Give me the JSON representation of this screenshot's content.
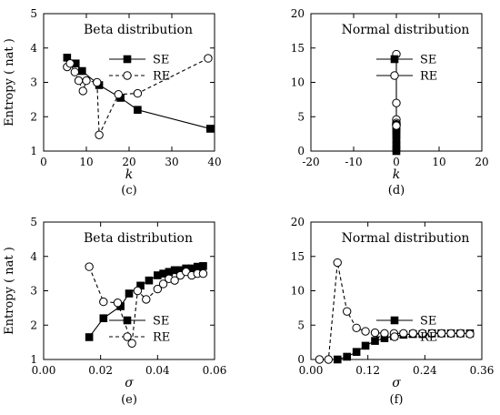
{
  "chart_data": [
    {
      "panel": "(c)",
      "type": "line",
      "title": "Beta distribution",
      "xlabel": "k",
      "ylabel": "Entropy ( nat )",
      "xlim": [
        0,
        40
      ],
      "ylim": [
        1,
        5
      ],
      "xticks": [
        0,
        10,
        20,
        30,
        40
      ],
      "yticks": [
        1,
        2,
        3,
        4,
        5
      ],
      "legend_position": "top-right",
      "series": [
        {
          "name": "SE",
          "marker": "filled-square",
          "line": "solid",
          "x": [
            5.5,
            7.5,
            9,
            13,
            18,
            22,
            39
          ],
          "y": [
            3.72,
            3.55,
            3.33,
            2.92,
            2.55,
            2.2,
            1.65
          ]
        },
        {
          "name": "RE",
          "marker": "open-circle",
          "line": "dashed",
          "x": [
            5.5,
            6.2,
            7.3,
            8.2,
            9.2,
            10,
            12.5,
            13,
            17.5,
            22,
            38.5
          ],
          "y": [
            3.45,
            3.55,
            3.3,
            3.05,
            2.75,
            3.05,
            3.0,
            1.47,
            2.65,
            2.68,
            3.7
          ]
        }
      ]
    },
    {
      "panel": "(d)",
      "type": "line",
      "title": "Normal distribution",
      "xlabel": "k",
      "ylabel": "",
      "xlim": [
        -20,
        20
      ],
      "ylim": [
        0,
        20
      ],
      "xticks": [
        -20,
        -10,
        0,
        10,
        20
      ],
      "yticks": [
        0,
        5,
        10,
        15,
        20
      ],
      "legend_position": "top-right",
      "series": [
        {
          "name": "SE",
          "marker": "filled-square",
          "line": "solid",
          "x": [
            0,
            0,
            0,
            0,
            0,
            0,
            0,
            0,
            0
          ],
          "y": [
            0,
            0.4,
            0.9,
            1.6,
            2.2,
            2.7,
            3.1,
            3.4,
            3.7
          ]
        },
        {
          "name": "RE",
          "marker": "open-circle",
          "line": "solid",
          "x": [
            0,
            0,
            0,
            0,
            0,
            0,
            0,
            0,
            0
          ],
          "y": [
            14.1,
            7.0,
            4.6,
            4.1,
            3.9,
            3.8,
            3.8,
            3.8,
            3.7
          ]
        }
      ]
    },
    {
      "panel": "(e)",
      "type": "line",
      "title": "Beta distribution",
      "xlabel": "σ",
      "ylabel": "Entropy ( nat )",
      "xlim": [
        0,
        0.06
      ],
      "ylim": [
        1,
        5
      ],
      "xticks": [
        0,
        0.02,
        0.04,
        0.06
      ],
      "xtick_labels": [
        "0.00",
        "0.02",
        "0.04",
        "0.06"
      ],
      "yticks": [
        1,
        2,
        3,
        4,
        5
      ],
      "legend_position": "center-right",
      "series": [
        {
          "name": "SE",
          "marker": "filled-square",
          "line": "solid",
          "x": [
            0.016,
            0.021,
            0.027,
            0.03,
            0.034,
            0.037,
            0.04,
            0.042,
            0.044,
            0.046,
            0.048,
            0.05,
            0.052,
            0.054,
            0.056
          ],
          "y": [
            1.65,
            2.2,
            2.55,
            2.92,
            3.15,
            3.3,
            3.45,
            3.5,
            3.55,
            3.6,
            3.6,
            3.65,
            3.65,
            3.7,
            3.72
          ]
        },
        {
          "name": "RE",
          "marker": "open-circle",
          "line": "dashed",
          "x": [
            0.016,
            0.021,
            0.026,
            0.031,
            0.033,
            0.036,
            0.04,
            0.042,
            0.044,
            0.046,
            0.048,
            0.05,
            0.052,
            0.054,
            0.056
          ],
          "y": [
            3.7,
            2.68,
            2.65,
            1.47,
            3.0,
            2.75,
            3.05,
            3.2,
            3.35,
            3.3,
            3.45,
            3.55,
            3.45,
            3.5,
            3.5
          ]
        }
      ]
    },
    {
      "panel": "(f)",
      "type": "line",
      "title": "Normal distribution",
      "xlabel": "σ",
      "ylabel": "",
      "xlim": [
        0,
        0.36
      ],
      "ylim": [
        0,
        20
      ],
      "xticks": [
        0,
        0.12,
        0.24,
        0.36
      ],
      "xtick_labels": [
        "0.00",
        "0.12",
        "0.24",
        "0.36"
      ],
      "yticks": [
        0,
        5,
        10,
        15,
        20
      ],
      "legend_position": "center-right",
      "series": [
        {
          "name": "SE",
          "marker": "filled-square",
          "line": "solid",
          "x": [
            0.056,
            0.076,
            0.096,
            0.115,
            0.135,
            0.155,
            0.175,
            0.195,
            0.215,
            0.235,
            0.255,
            0.275,
            0.295,
            0.315,
            0.335
          ],
          "y": [
            0.0,
            0.4,
            1.1,
            2.0,
            2.7,
            3.1,
            3.4,
            3.6,
            3.7,
            3.7,
            3.8,
            3.8,
            3.8,
            3.8,
            3.8
          ]
        },
        {
          "name": "RE",
          "marker": "open-circle",
          "line": "dashed",
          "x": [
            0.018,
            0.037,
            0.056,
            0.076,
            0.096,
            0.115,
            0.135,
            0.155,
            0.175,
            0.195,
            0.215,
            0.235,
            0.255,
            0.275,
            0.295,
            0.315,
            0.335
          ],
          "y": [
            0.0,
            0.0,
            14.1,
            7.0,
            4.6,
            4.1,
            3.9,
            3.8,
            3.8,
            3.8,
            3.8,
            3.8,
            3.8,
            3.8,
            3.8,
            3.8,
            3.7
          ]
        }
      ]
    }
  ]
}
